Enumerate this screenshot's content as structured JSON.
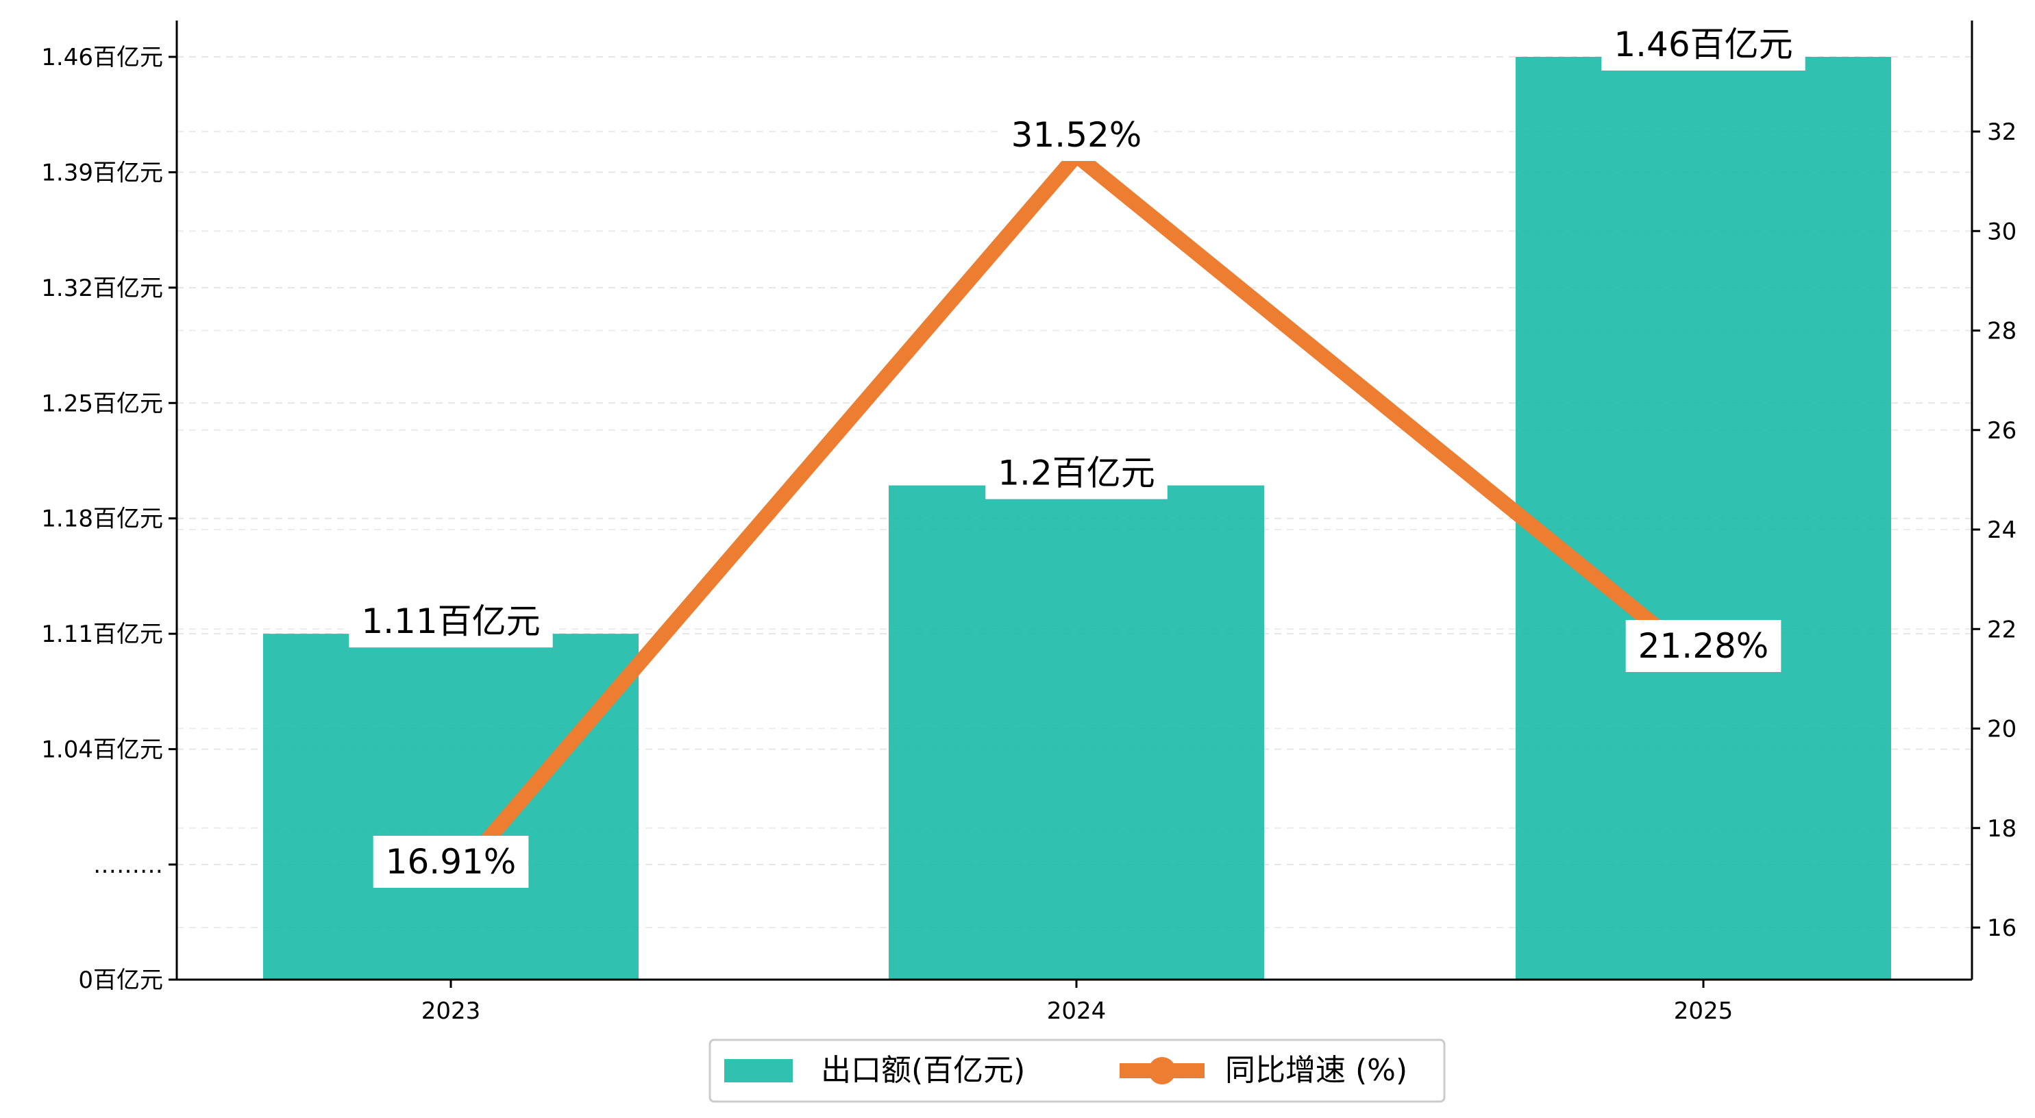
{
  "chart_data": {
    "type": "bar",
    "categories": [
      "2023",
      "2024",
      "2025"
    ],
    "series": [
      {
        "name": "出口额(百亿元)",
        "type": "bar",
        "axis": "left",
        "values": [
          1.11,
          1.2,
          1.46
        ],
        "labels": [
          "1.11百亿元",
          "1.2百亿元",
          "1.46百亿元"
        ],
        "color": "#1ABAA7"
      },
      {
        "name": "同比增速 (%)",
        "type": "line",
        "axis": "right",
        "values": [
          16.91,
          31.52,
          21.28
        ],
        "labels": [
          "16.91%",
          "31.52%",
          "21.28%"
        ],
        "color": "#ED7D31"
      }
    ],
    "left_axis": {
      "ticks": [
        {
          "value": 0,
          "label": "0百亿元"
        },
        {
          "value": 0.97,
          "label": "………"
        },
        {
          "value": 1.04,
          "label": "1.04百亿元"
        },
        {
          "value": 1.11,
          "label": "1.11百亿元"
        },
        {
          "value": 1.18,
          "label": "1.18百亿元"
        },
        {
          "value": 1.25,
          "label": "1.25百亿元"
        },
        {
          "value": 1.32,
          "label": "1.32百亿元"
        },
        {
          "value": 1.39,
          "label": "1.39百亿元"
        },
        {
          "value": 1.46,
          "label": "1.46百亿元"
        }
      ],
      "broken": true
    },
    "right_axis": {
      "ticks": [
        16,
        18,
        20,
        22,
        24,
        26,
        28,
        30,
        32
      ],
      "ylim": [
        15,
        33.6
      ]
    },
    "grid": true,
    "legend_position": "bottom-center",
    "legend": [
      {
        "label": "出口额(百亿元)",
        "marker": "bar",
        "color": "#1ABAA7"
      },
      {
        "label": "同比增速 (%)",
        "marker": "line",
        "color": "#ED7D31"
      }
    ]
  }
}
